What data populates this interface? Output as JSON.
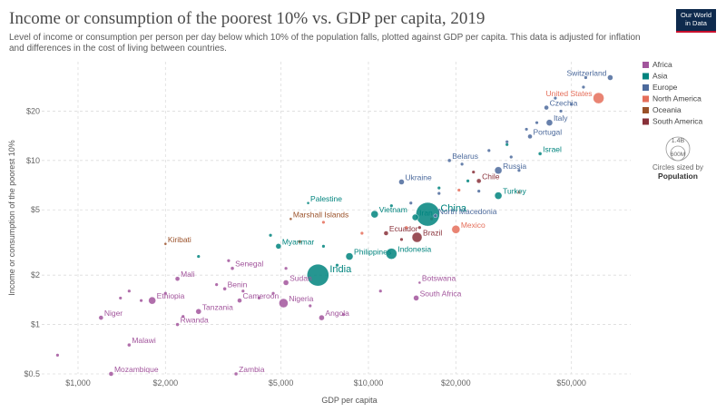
{
  "logo": {
    "line1": "Our World",
    "line2": "in Data"
  },
  "chart_data": {
    "type": "scatter",
    "title": "Income or consumption of the poorest 10% vs. GDP per capita, 2019",
    "subtitle": "Level of income or consumption per person per day below which 10% of the population falls, plotted against GDP per capita. This data is adjusted for inflation and differences in the cost of living between countries.",
    "xlabel": "GDP per capita",
    "ylabel": "Income or consumption of the poorest 10%",
    "x_scale": "log",
    "y_scale": "log",
    "xlim": [
      750,
      80000
    ],
    "ylim": [
      0.5,
      40
    ],
    "x_ticks": [
      {
        "v": 1000,
        "label": "$1,000"
      },
      {
        "v": 2000,
        "label": "$2,000"
      },
      {
        "v": 5000,
        "label": "$5,000"
      },
      {
        "v": 10000,
        "label": "$10,000"
      },
      {
        "v": 20000,
        "label": "$20,000"
      },
      {
        "v": 50000,
        "label": "$50,000"
      }
    ],
    "y_ticks": [
      {
        "v": 0.5,
        "label": "$0.5"
      },
      {
        "v": 1,
        "label": "$1"
      },
      {
        "v": 2,
        "label": "$2"
      },
      {
        "v": 5,
        "label": "$5"
      },
      {
        "v": 10,
        "label": "$10"
      },
      {
        "v": 20,
        "label": "$20"
      }
    ],
    "grid": true,
    "legend_position": "right",
    "legend": [
      {
        "name": "Africa",
        "color": "#a2559c"
      },
      {
        "name": "Asia",
        "color": "#00847e"
      },
      {
        "name": "Europe",
        "color": "#4c6a9c"
      },
      {
        "name": "North America",
        "color": "#e56e5a"
      },
      {
        "name": "Oceania",
        "color": "#9a5129"
      },
      {
        "name": "South America",
        "color": "#883039"
      }
    ],
    "size_legend": {
      "value": "1.4B",
      "value2": "600M",
      "caption1": "Circles sized by",
      "caption2": "Population"
    },
    "labeled_points": [
      {
        "label": "Switzerland",
        "region": "Europe",
        "x": 68000,
        "y": 32,
        "r": 3
      },
      {
        "label": "United States",
        "region": "North America",
        "x": 62000,
        "y": 24,
        "r": 6
      },
      {
        "label": "Czechia",
        "region": "Europe",
        "x": 41000,
        "y": 21,
        "r": 2.5
      },
      {
        "label": "Italy",
        "region": "Europe",
        "x": 42000,
        "y": 17,
        "r": 3.5
      },
      {
        "label": "Portugal",
        "region": "Europe",
        "x": 36000,
        "y": 14,
        "r": 2.5
      },
      {
        "label": "Israel",
        "region": "Asia",
        "x": 39000,
        "y": 11,
        "r": 2
      },
      {
        "label": "Belarus",
        "region": "Europe",
        "x": 19000,
        "y": 10,
        "r": 2
      },
      {
        "label": "Russia",
        "region": "Europe",
        "x": 28000,
        "y": 8.7,
        "r": 4
      },
      {
        "label": "Chile",
        "region": "South America",
        "x": 24000,
        "y": 7.5,
        "r": 2.5
      },
      {
        "label": "Ukraine",
        "region": "Europe",
        "x": 13000,
        "y": 7.4,
        "r": 3
      },
      {
        "label": "Turkey",
        "region": "Asia",
        "x": 28000,
        "y": 6.1,
        "r": 4
      },
      {
        "label": "Palestine",
        "region": "Asia",
        "x": 6200,
        "y": 5.5,
        "r": 1.5
      },
      {
        "label": "China",
        "region": "Asia",
        "x": 16000,
        "y": 4.7,
        "r": 13
      },
      {
        "label": "Vietnam",
        "region": "Asia",
        "x": 10500,
        "y": 4.7,
        "r": 4
      },
      {
        "label": "Iran",
        "region": "Asia",
        "x": 14500,
        "y": 4.5,
        "r": 3.5
      },
      {
        "label": "North Macedonia",
        "region": "Europe",
        "x": 17000,
        "y": 4.6,
        "r": 2
      },
      {
        "label": "Marshall Islands",
        "region": "Oceania",
        "x": 5400,
        "y": 4.4,
        "r": 1.5
      },
      {
        "label": "Mexico",
        "region": "North America",
        "x": 20000,
        "y": 3.8,
        "r": 4.5
      },
      {
        "label": "Ecuador",
        "region": "South America",
        "x": 11500,
        "y": 3.6,
        "r": 2.5
      },
      {
        "label": "Brazil",
        "region": "South America",
        "x": 14700,
        "y": 3.4,
        "r": 5.5
      },
      {
        "label": "Kiribati",
        "region": "Oceania",
        "x": 2000,
        "y": 3.1,
        "r": 1.5
      },
      {
        "label": "Myanmar",
        "region": "Asia",
        "x": 4900,
        "y": 3.0,
        "r": 3
      },
      {
        "label": "Indonesia",
        "region": "Asia",
        "x": 12000,
        "y": 2.7,
        "r": 6
      },
      {
        "label": "Philippines",
        "region": "Asia",
        "x": 8600,
        "y": 2.6,
        "r": 4
      },
      {
        "label": "India",
        "region": "Asia",
        "x": 6700,
        "y": 2.0,
        "r": 12
      },
      {
        "label": "Senegal",
        "region": "Africa",
        "x": 3400,
        "y": 2.2,
        "r": 2
      },
      {
        "label": "Mali",
        "region": "Africa",
        "x": 2200,
        "y": 1.9,
        "r": 2.5
      },
      {
        "label": "Sudan",
        "region": "Africa",
        "x": 5200,
        "y": 1.8,
        "r": 3
      },
      {
        "label": "Benin",
        "region": "Africa",
        "x": 3200,
        "y": 1.65,
        "r": 2
      },
      {
        "label": "Ethiopia",
        "region": "Africa",
        "x": 1800,
        "y": 1.4,
        "r": 4
      },
      {
        "label": "Cameroon",
        "region": "Africa",
        "x": 3600,
        "y": 1.4,
        "r": 2.5
      },
      {
        "label": "Nigeria",
        "region": "Africa",
        "x": 5100,
        "y": 1.35,
        "r": 5
      },
      {
        "label": "Tanzania",
        "region": "Africa",
        "x": 2600,
        "y": 1.2,
        "r": 3
      },
      {
        "label": "Botswana",
        "region": "Africa",
        "x": 15000,
        "y": 1.8,
        "r": 1.5
      },
      {
        "label": "South Africa",
        "region": "Africa",
        "x": 14600,
        "y": 1.45,
        "r": 3
      },
      {
        "label": "Angola",
        "region": "Africa",
        "x": 6900,
        "y": 1.1,
        "r": 3
      },
      {
        "label": "Niger",
        "region": "Africa",
        "x": 1200,
        "y": 1.1,
        "r": 2.5
      },
      {
        "label": "Rwanda",
        "region": "Africa",
        "x": 2200,
        "y": 1.0,
        "r": 2
      },
      {
        "label": "Malawi",
        "region": "Africa",
        "x": 1500,
        "y": 0.75,
        "r": 2
      },
      {
        "label": "Mozambique",
        "region": "Africa",
        "x": 1300,
        "y": 0.5,
        "r": 2.5
      },
      {
        "label": "Zambia",
        "region": "Africa",
        "x": 3500,
        "y": 0.5,
        "r": 2
      }
    ],
    "other_points": [
      {
        "region": "Africa",
        "x": 850,
        "y": 0.65
      },
      {
        "region": "Africa",
        "x": 1400,
        "y": 1.45
      },
      {
        "region": "Africa",
        "x": 1500,
        "y": 1.6
      },
      {
        "region": "Africa",
        "x": 1650,
        "y": 1.4
      },
      {
        "region": "Africa",
        "x": 2000,
        "y": 1.55
      },
      {
        "region": "Africa",
        "x": 2300,
        "y": 1.12
      },
      {
        "region": "Africa",
        "x": 3000,
        "y": 1.75
      },
      {
        "region": "Africa",
        "x": 3700,
        "y": 1.6
      },
      {
        "region": "Africa",
        "x": 4200,
        "y": 1.45
      },
      {
        "region": "Africa",
        "x": 4700,
        "y": 1.55
      },
      {
        "region": "Africa",
        "x": 6300,
        "y": 1.3
      },
      {
        "region": "Africa",
        "x": 8200,
        "y": 1.15
      },
      {
        "region": "Africa",
        "x": 11000,
        "y": 1.6
      },
      {
        "region": "Africa",
        "x": 5200,
        "y": 2.2
      },
      {
        "region": "Africa",
        "x": 3300,
        "y": 2.45
      },
      {
        "region": "Asia",
        "x": 2600,
        "y": 2.6
      },
      {
        "region": "Asia",
        "x": 4600,
        "y": 3.5
      },
      {
        "region": "Asia",
        "x": 7000,
        "y": 3.0
      },
      {
        "region": "Asia",
        "x": 7800,
        "y": 2.3
      },
      {
        "region": "Asia",
        "x": 17500,
        "y": 6.8
      },
      {
        "region": "Asia",
        "x": 22000,
        "y": 7.5
      },
      {
        "region": "Asia",
        "x": 30000,
        "y": 12.5
      },
      {
        "region": "Asia",
        "x": 12000,
        "y": 5.3
      },
      {
        "region": "Europe",
        "x": 33000,
        "y": 8.7
      },
      {
        "region": "Europe",
        "x": 24000,
        "y": 6.5
      },
      {
        "region": "Europe",
        "x": 26000,
        "y": 11.5
      },
      {
        "region": "Europe",
        "x": 30000,
        "y": 13
      },
      {
        "region": "Europe",
        "x": 35000,
        "y": 15.5
      },
      {
        "region": "Europe",
        "x": 38000,
        "y": 17
      },
      {
        "region": "Europe",
        "x": 46000,
        "y": 20
      },
      {
        "region": "Europe",
        "x": 50000,
        "y": 22
      },
      {
        "region": "Europe",
        "x": 55000,
        "y": 28
      },
      {
        "region": "Europe",
        "x": 56000,
        "y": 32
      },
      {
        "region": "Europe",
        "x": 44000,
        "y": 24
      },
      {
        "region": "Europe",
        "x": 31000,
        "y": 10.5
      },
      {
        "region": "Europe",
        "x": 21000,
        "y": 9.5
      },
      {
        "region": "Europe",
        "x": 17500,
        "y": 6.3
      },
      {
        "region": "Europe",
        "x": 14000,
        "y": 5.5
      },
      {
        "region": "North America",
        "x": 16500,
        "y": 4.4
      },
      {
        "region": "North America",
        "x": 20500,
        "y": 6.6
      },
      {
        "region": "North America",
        "x": 33000,
        "y": 6.4
      },
      {
        "region": "North America",
        "x": 13500,
        "y": 3.9
      },
      {
        "region": "North America",
        "x": 9500,
        "y": 3.6
      },
      {
        "region": "North America",
        "x": 7000,
        "y": 4.2
      },
      {
        "region": "South America",
        "x": 23000,
        "y": 8.5
      },
      {
        "region": "South America",
        "x": 15000,
        "y": 3.9
      },
      {
        "region": "South America",
        "x": 13000,
        "y": 3.3
      },
      {
        "region": "Oceania",
        "x": 5800,
        "y": 3.2
      }
    ]
  }
}
